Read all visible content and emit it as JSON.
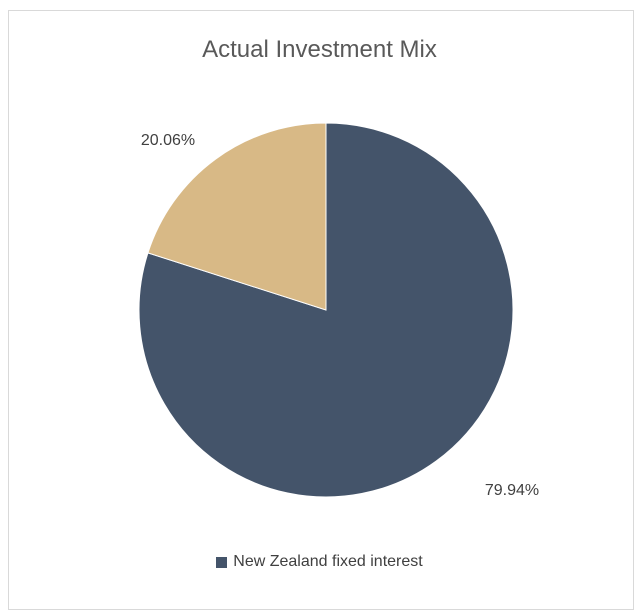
{
  "chart_data": {
    "type": "pie",
    "title": "Actual Investment Mix",
    "slices": [
      {
        "name": "New Zealand fixed interest",
        "value": 79.94,
        "label": "79.94%",
        "color": "#44546a"
      },
      {
        "name": "",
        "value": 20.06,
        "label": "20.06%",
        "color": "#d8b986"
      }
    ],
    "legend": {
      "position": "bottom",
      "entries": [
        "New Zealand fixed interest"
      ]
    }
  }
}
